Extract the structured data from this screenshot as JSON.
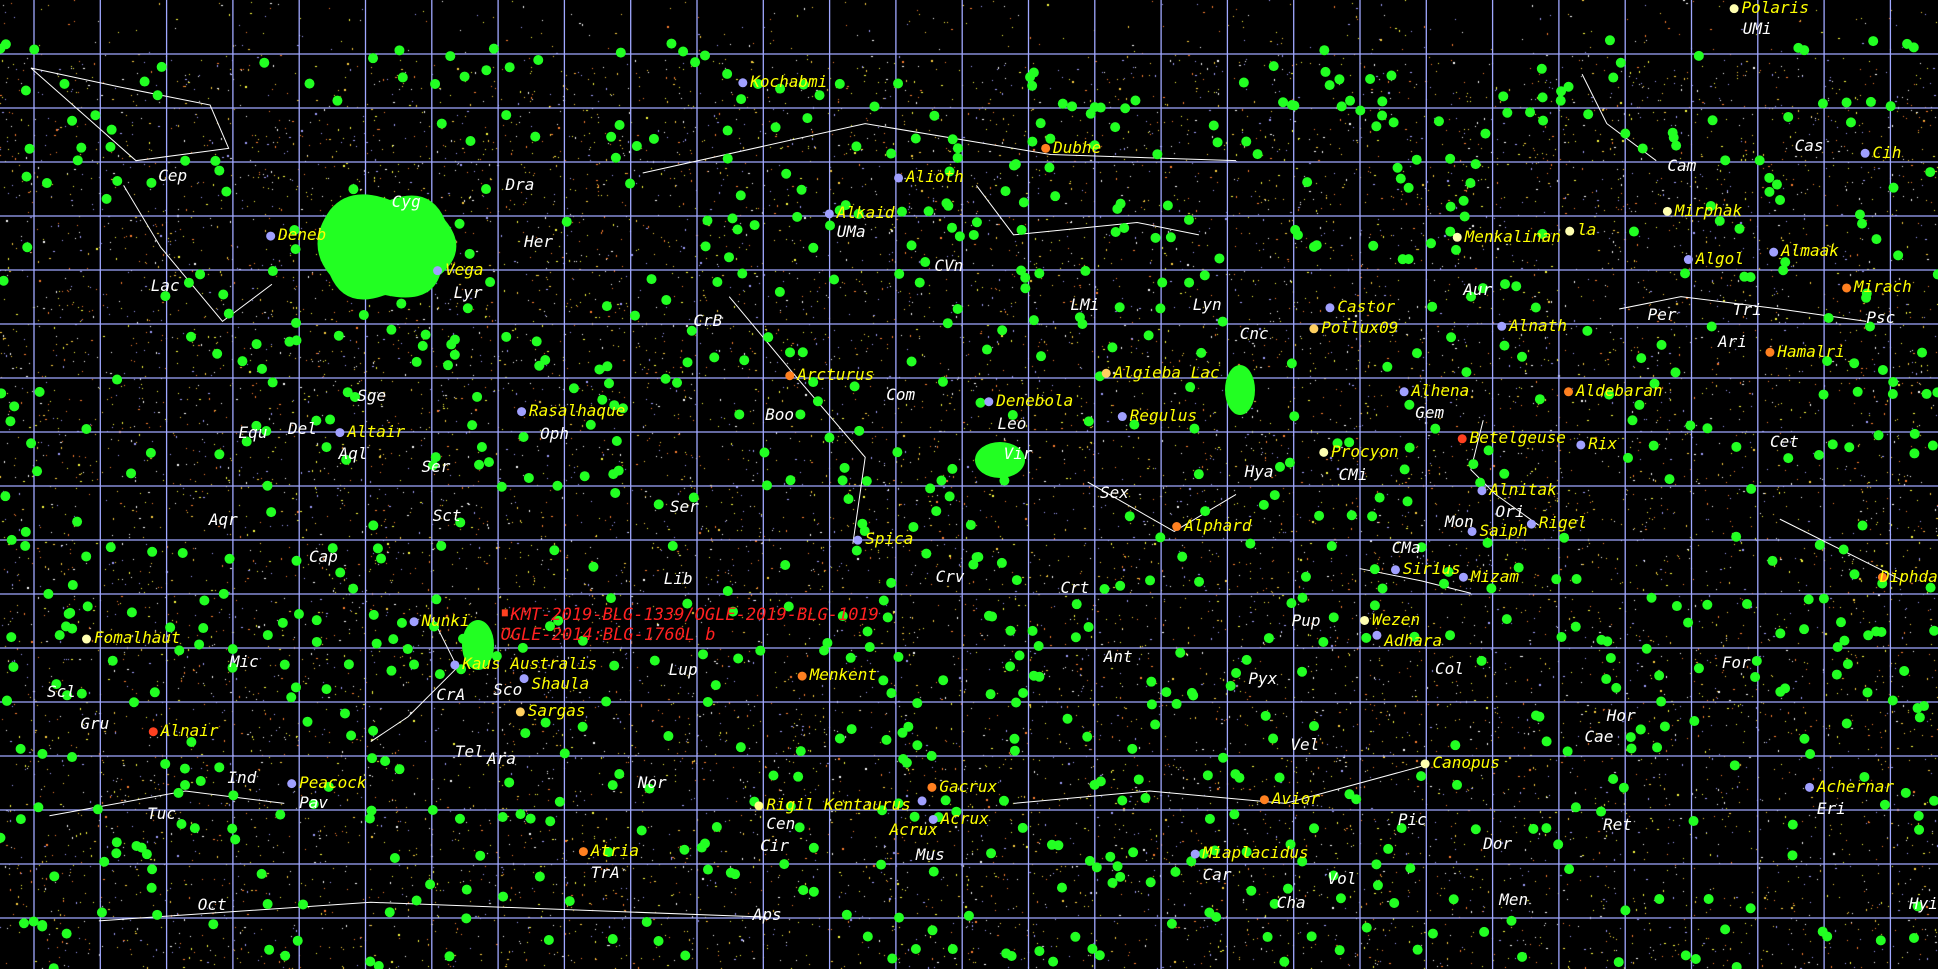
{
  "colors": {
    "background": "#000000",
    "grid": "#a0a8ff",
    "star_label": "#ffff00",
    "constellation_label": "#ffffff",
    "object_label": "#ff2020",
    "object_marker": "#22ff22",
    "constellation_line": "#ffffff"
  },
  "star_labels": [
    "Polaris",
    "Kochabmi",
    "Dubhe",
    "Alioth",
    "Alkaid",
    "Deneb",
    "Vega",
    "Menkalinan",
    "la",
    "Mirphak",
    "Cih",
    "Algol",
    "Almaak",
    "Mirach",
    "Castor",
    "Pollux09",
    "Alnath",
    "Hamalri",
    "Arcturus",
    "Algieba Lac",
    "Denebola",
    "Regulus",
    "Alhena",
    "Aldebaran",
    "Rasalhaque",
    "Altair",
    "Betelgeuse",
    "Rix",
    "Procyon",
    "Alnitak",
    "Saiph",
    "Rigel",
    "Alphard",
    "Spica",
    "Sirius",
    "Mizam",
    "Diphda",
    "Nunki",
    "Fomalhaut",
    "Wezen",
    "Adhara",
    "Kaus Australis",
    "Shaula",
    "Menkent",
    "Sargas",
    "Alnair",
    "Peacock",
    "Canopus",
    "Gacrux",
    "Acrux",
    "Acrux",
    "Avior",
    "Rigil Kentaurus",
    "Achernar",
    "Atria",
    "Miaplacidus"
  ],
  "constellation_labels": [
    "UMi",
    "Cep",
    "Cyg",
    "Dra",
    "Her",
    "Lac",
    "Lyr",
    "UMa",
    "CVn",
    "LMi",
    "Lyn",
    "Cam",
    "Cas",
    "Aur",
    "Per",
    "Tri",
    "Psc",
    "Ari",
    "Cnc",
    "CrB",
    "Boo",
    "Com",
    "Sge",
    "Del",
    "Equ",
    "Aql",
    "Ser",
    "Oph",
    "Vir",
    "Leo",
    "Gem",
    "Hya",
    "Sex",
    "Cet",
    "CMi",
    "Ori",
    "Sct",
    "Ser",
    "Aqr",
    "Mon",
    "Cap",
    "CMa",
    "Lib",
    "Crv",
    "Crt",
    "Pup",
    "Mic",
    "Ant",
    "Col",
    "For",
    "Lup",
    "Scl",
    "CrA",
    "Pyx",
    "Sco",
    "Hor",
    "Cae",
    "Gru",
    "Vel",
    "Tel",
    "Ara",
    "Ind",
    "Nor",
    "Tuc",
    "Pav",
    "Cen",
    "Pic",
    "Ret",
    "Eri",
    "Cir",
    "Mus",
    "Dor",
    "Car",
    "Vol",
    "TrA",
    "Men",
    "Oct",
    "Cha",
    "Aps",
    "Hyi"
  ],
  "object_labels": [
    "KMT-2019-BLG-1339/OGLE-2019-BLG-1019",
    "OGLE-2014:BLG-1760L b"
  ]
}
